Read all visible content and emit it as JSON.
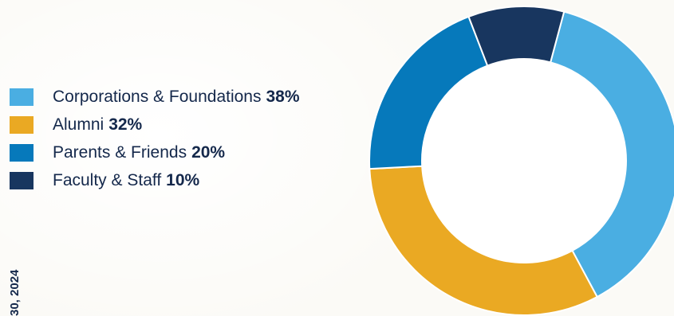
{
  "chart_data": {
    "type": "pie",
    "variant": "donut",
    "title": "",
    "series": [
      {
        "name": "Corporations & Foundations",
        "label": "38%",
        "value": 38,
        "color": "#4aaee2"
      },
      {
        "name": "Alumni",
        "label": "32%",
        "value": 32,
        "color": "#eaa923"
      },
      {
        "name": "Parents & Friends",
        "label": "20%",
        "value": 20,
        "color": "#0679bb"
      },
      {
        "name": "Faculty & Staff",
        "label": "10%",
        "value": 10,
        "color": "#18365f"
      }
    ],
    "legend_position": "left"
  },
  "side_label": "30, 2024",
  "colors": {
    "text": "#14284b",
    "background": "#fbfaf6"
  }
}
